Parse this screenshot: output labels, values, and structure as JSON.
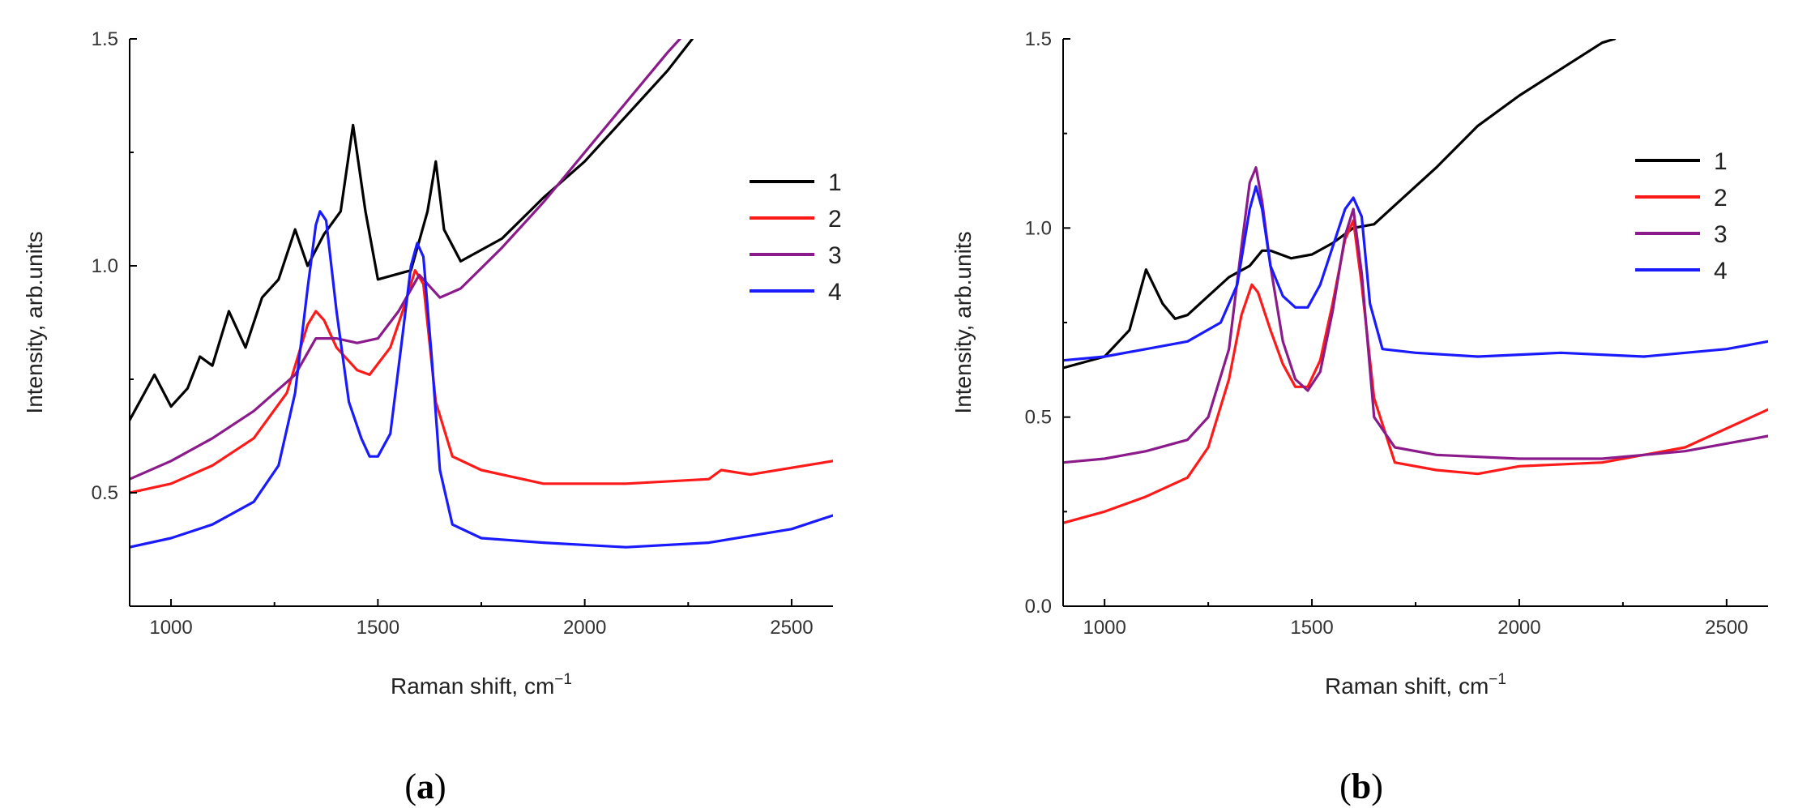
{
  "chart_data": [
    {
      "type": "line",
      "panel_label": "a",
      "xlabel": "Raman shift, cm",
      "xlabel_superscript": "−1",
      "ylabel": "Intensity, arb.units",
      "xlim": [
        900,
        2600
      ],
      "ylim": [
        0.25,
        1.5
      ],
      "x_ticks": [
        1000,
        1500,
        2000,
        2500
      ],
      "y_ticks": [
        0.5,
        1.0,
        1.5
      ],
      "x_tick_labels": [
        "1000",
        "1500",
        "2000",
        "2500"
      ],
      "y_tick_labels": [
        "0.5",
        "1.0",
        "1.5"
      ],
      "legend_position": "right",
      "series": [
        {
          "name": "1",
          "color": "#000000",
          "x": [
            900,
            960,
            1000,
            1040,
            1070,
            1100,
            1140,
            1180,
            1220,
            1260,
            1300,
            1330,
            1370,
            1410,
            1440,
            1470,
            1500,
            1540,
            1580,
            1620,
            1640,
            1660,
            1700,
            1800,
            1900,
            2000,
            2100,
            2200,
            2260
          ],
          "y": [
            0.66,
            0.76,
            0.69,
            0.73,
            0.8,
            0.78,
            0.9,
            0.82,
            0.93,
            0.97,
            1.08,
            1.0,
            1.07,
            1.12,
            1.31,
            1.12,
            0.97,
            0.98,
            0.99,
            1.12,
            1.23,
            1.08,
            1.01,
            1.06,
            1.15,
            1.23,
            1.33,
            1.43,
            1.5
          ]
        },
        {
          "name": "2",
          "color": "#ff1a1a",
          "x": [
            900,
            1000,
            1100,
            1200,
            1280,
            1330,
            1350,
            1370,
            1400,
            1450,
            1480,
            1530,
            1560,
            1590,
            1610,
            1640,
            1680,
            1750,
            1900,
            2100,
            2300,
            2330,
            2400,
            2600
          ],
          "y": [
            0.5,
            0.52,
            0.56,
            0.62,
            0.72,
            0.87,
            0.9,
            0.88,
            0.82,
            0.77,
            0.76,
            0.82,
            0.9,
            0.99,
            0.96,
            0.7,
            0.58,
            0.55,
            0.52,
            0.52,
            0.53,
            0.55,
            0.54,
            0.57
          ]
        },
        {
          "name": "3",
          "color": "#8b1a8b",
          "x": [
            900,
            1000,
            1100,
            1200,
            1300,
            1350,
            1400,
            1450,
            1500,
            1550,
            1600,
            1650,
            1700,
            1800,
            1900,
            2000,
            2100,
            2200,
            2230
          ],
          "y": [
            0.53,
            0.57,
            0.62,
            0.68,
            0.76,
            0.84,
            0.84,
            0.83,
            0.84,
            0.9,
            0.98,
            0.93,
            0.95,
            1.04,
            1.14,
            1.25,
            1.36,
            1.47,
            1.5
          ]
        },
        {
          "name": "4",
          "color": "#1a1aff",
          "x": [
            900,
            1000,
            1100,
            1200,
            1260,
            1300,
            1330,
            1350,
            1360,
            1375,
            1400,
            1430,
            1460,
            1480,
            1500,
            1530,
            1560,
            1580,
            1595,
            1610,
            1630,
            1650,
            1680,
            1750,
            1900,
            2100,
            2300,
            2500,
            2600
          ],
          "y": [
            0.38,
            0.4,
            0.43,
            0.48,
            0.56,
            0.72,
            0.95,
            1.09,
            1.12,
            1.1,
            0.9,
            0.7,
            0.62,
            0.58,
            0.58,
            0.63,
            0.85,
            1.0,
            1.05,
            1.02,
            0.8,
            0.55,
            0.43,
            0.4,
            0.39,
            0.38,
            0.39,
            0.42,
            0.45
          ]
        }
      ]
    },
    {
      "type": "line",
      "panel_label": "b",
      "xlabel": "Raman shift, cm",
      "xlabel_superscript": "−1",
      "ylabel": "Intensity, arb.units",
      "xlim": [
        900,
        2600
      ],
      "ylim": [
        0.0,
        1.5
      ],
      "x_ticks": [
        1000,
        1500,
        2000,
        2500
      ],
      "y_ticks": [
        0.0,
        0.5,
        1.0,
        1.5
      ],
      "x_tick_labels": [
        "1000",
        "1500",
        "2000",
        "2500"
      ],
      "y_tick_labels": [
        "0.0",
        "0.5",
        "1.0",
        "1.5"
      ],
      "legend_position": "right",
      "series": [
        {
          "name": "1",
          "color": "#000000",
          "x": [
            900,
            1000,
            1060,
            1100,
            1140,
            1170,
            1200,
            1250,
            1300,
            1350,
            1380,
            1400,
            1450,
            1500,
            1550,
            1600,
            1650,
            1700,
            1800,
            1900,
            2000,
            2100,
            2200,
            2230
          ],
          "y": [
            0.63,
            0.66,
            0.73,
            0.89,
            0.8,
            0.76,
            0.77,
            0.82,
            0.87,
            0.9,
            0.94,
            0.94,
            0.92,
            0.93,
            0.96,
            1.0,
            1.01,
            1.06,
            1.16,
            1.27,
            1.35,
            1.42,
            1.49,
            1.5
          ]
        },
        {
          "name": "2",
          "color": "#ff1a1a",
          "x": [
            900,
            1000,
            1100,
            1200,
            1250,
            1300,
            1330,
            1355,
            1370,
            1400,
            1430,
            1460,
            1490,
            1520,
            1550,
            1580,
            1600,
            1620,
            1650,
            1700,
            1800,
            1900,
            2000,
            2200,
            2400,
            2600
          ],
          "y": [
            0.22,
            0.25,
            0.29,
            0.34,
            0.42,
            0.6,
            0.77,
            0.85,
            0.83,
            0.73,
            0.64,
            0.58,
            0.58,
            0.65,
            0.8,
            0.97,
            1.02,
            0.85,
            0.55,
            0.38,
            0.36,
            0.35,
            0.37,
            0.38,
            0.42,
            0.52
          ]
        },
        {
          "name": "3",
          "color": "#8b1a8b",
          "x": [
            900,
            1000,
            1100,
            1200,
            1250,
            1300,
            1330,
            1350,
            1365,
            1380,
            1400,
            1430,
            1460,
            1490,
            1520,
            1550,
            1580,
            1600,
            1620,
            1650,
            1700,
            1800,
            2000,
            2200,
            2400,
            2600
          ],
          "y": [
            0.38,
            0.39,
            0.41,
            0.44,
            0.5,
            0.68,
            0.95,
            1.12,
            1.16,
            1.07,
            0.9,
            0.7,
            0.6,
            0.57,
            0.62,
            0.78,
            0.98,
            1.05,
            0.88,
            0.5,
            0.42,
            0.4,
            0.39,
            0.39,
            0.41,
            0.45
          ]
        },
        {
          "name": "4",
          "color": "#1a1aff",
          "x": [
            900,
            1000,
            1100,
            1200,
            1280,
            1320,
            1350,
            1365,
            1380,
            1400,
            1430,
            1460,
            1490,
            1520,
            1550,
            1580,
            1600,
            1620,
            1640,
            1670,
            1750,
            1900,
            2100,
            2300,
            2500,
            2600
          ],
          "y": [
            0.65,
            0.66,
            0.68,
            0.7,
            0.75,
            0.85,
            1.05,
            1.11,
            1.05,
            0.9,
            0.82,
            0.79,
            0.79,
            0.85,
            0.95,
            1.05,
            1.08,
            1.03,
            0.8,
            0.68,
            0.67,
            0.66,
            0.67,
            0.66,
            0.68,
            0.7
          ]
        }
      ]
    }
  ]
}
